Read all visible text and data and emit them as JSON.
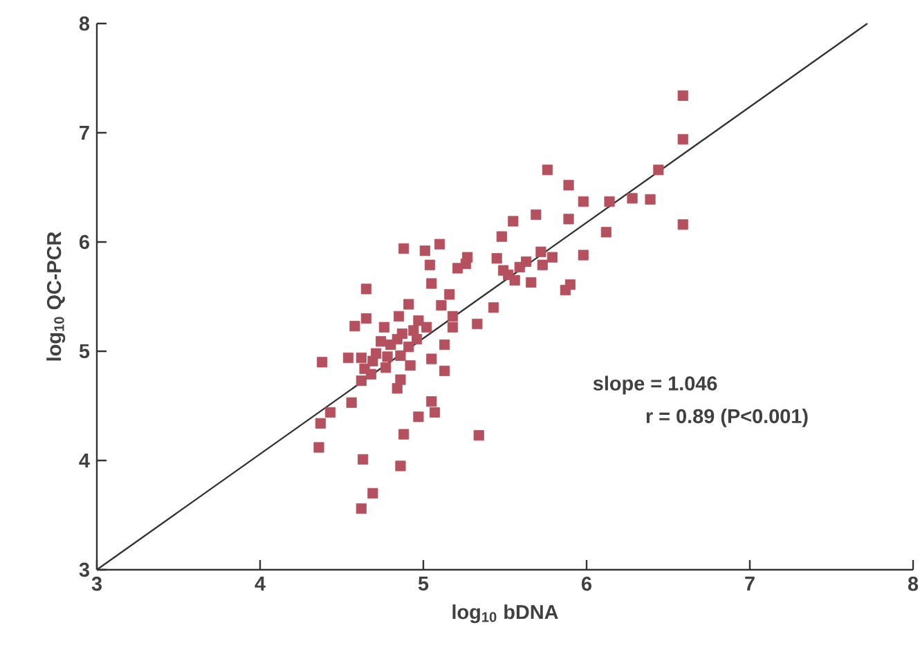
{
  "chart_data": {
    "type": "scatter",
    "xlabel": "log$_{10}$ bDNA",
    "ylabel": "log$_{10}$ QC-PCR",
    "xlim": [
      3,
      8
    ],
    "ylim": [
      3,
      8
    ],
    "xticks": [
      3,
      4,
      5,
      6,
      7,
      8
    ],
    "yticks": [
      3,
      4,
      5,
      6,
      7,
      8
    ],
    "marker": "square",
    "annotations": [
      "slope = 1.046",
      "r = 0.89 (P<0.001)"
    ],
    "series": [
      {
        "color": "#b5505e",
        "x": [
          6.59,
          6.59,
          6.59,
          6.44,
          6.39,
          6.28,
          6.14,
          6.12,
          5.98,
          5.98,
          5.89,
          5.89,
          5.9,
          5.87,
          5.76,
          5.69,
          5.79,
          5.73,
          5.72,
          5.66,
          5.63,
          5.59,
          5.55,
          5.48,
          5.45,
          5.49,
          5.52,
          5.56,
          5.43,
          5.33,
          5.34,
          5.27,
          5.26,
          5.21,
          5.18,
          5.18,
          5.16,
          5.11,
          5.13,
          5.13,
          5.1,
          5.05,
          5.04,
          5.01,
          5.02,
          5.05,
          5.05,
          5.07,
          4.97,
          4.97,
          4.94,
          4.96,
          4.91,
          4.91,
          4.92,
          4.88,
          4.85,
          4.87,
          4.84,
          4.86,
          4.86,
          4.84,
          4.88,
          4.86,
          4.8,
          4.78,
          4.76,
          4.74,
          4.71,
          4.77,
          4.69,
          4.68,
          4.65,
          4.65,
          4.58,
          4.62,
          4.54,
          4.64,
          4.62,
          4.56,
          4.38,
          4.43,
          4.37,
          4.36,
          4.63,
          4.69,
          4.62
        ],
        "values": [
          7.34,
          6.94,
          6.16,
          6.66,
          6.39,
          6.4,
          6.37,
          6.09,
          6.37,
          5.88,
          6.52,
          6.21,
          5.61,
          5.56,
          6.66,
          6.25,
          5.86,
          5.79,
          5.91,
          5.63,
          5.82,
          5.77,
          6.19,
          6.05,
          5.85,
          5.74,
          5.7,
          5.65,
          5.4,
          5.25,
          4.23,
          5.86,
          5.8,
          5.76,
          5.32,
          5.22,
          5.52,
          5.42,
          5.06,
          4.82,
          5.98,
          5.62,
          5.79,
          5.92,
          5.22,
          4.93,
          4.54,
          4.44,
          4.4,
          5.28,
          5.19,
          5.11,
          5.43,
          5.04,
          4.87,
          5.94,
          5.32,
          5.16,
          5.11,
          4.96,
          4.74,
          4.66,
          4.24,
          3.95,
          5.06,
          4.95,
          5.22,
          5.09,
          4.98,
          4.85,
          4.91,
          4.79,
          5.57,
          5.3,
          5.23,
          4.94,
          4.94,
          4.84,
          4.73,
          4.53,
          4.9,
          4.44,
          4.34,
          4.12,
          4.01,
          3.7,
          3.56
        ]
      },
      {
        "type": "line",
        "color": "#333333",
        "marker": "none",
        "x": [
          3,
          7.72
        ],
        "values": [
          3,
          8
        ]
      }
    ]
  }
}
